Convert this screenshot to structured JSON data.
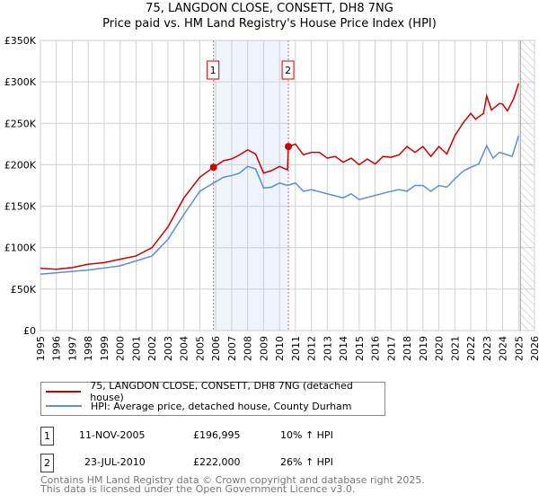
{
  "title": "75, LANGDON CLOSE, CONSETT, DH8 7NG",
  "subtitle": "Price paid vs. HM Land Registry's House Price Index (HPI)",
  "chart_data": {
    "type": "line",
    "xlim": [
      1995,
      2026
    ],
    "ylim": [
      0,
      350000
    ],
    "x_ticks": [
      1995,
      1996,
      1997,
      1998,
      1999,
      2000,
      2001,
      2002,
      2003,
      2004,
      2005,
      2006,
      2007,
      2008,
      2009,
      2010,
      2011,
      2012,
      2013,
      2014,
      2015,
      2016,
      2017,
      2018,
      2019,
      2020,
      2021,
      2022,
      2023,
      2024,
      2025,
      2026
    ],
    "y_ticks": [
      {
        "v": 0,
        "l": "£0"
      },
      {
        "v": 50000,
        "l": "£50K"
      },
      {
        "v": 100000,
        "l": "£100K"
      },
      {
        "v": 150000,
        "l": "£150K"
      },
      {
        "v": 200000,
        "l": "£200K"
      },
      {
        "v": 250000,
        "l": "£250K"
      },
      {
        "v": 300000,
        "l": "£300K"
      },
      {
        "v": 350000,
        "l": "£350K"
      }
    ],
    "grid": true,
    "shaded_range": [
      2005.86,
      2010.56
    ],
    "forecast_hatch_from": 2025.0,
    "series": [
      {
        "name": "75, LANGDON CLOSE, CONSETT, DH8 7NG (detached house)",
        "color": "#cc0000",
        "x": [
          1995,
          1996,
          1997,
          1998,
          1999,
          2000,
          2001,
          2002,
          2003,
          2004,
          2005,
          2005.86,
          2006.5,
          2007,
          2007.5,
          2008,
          2008.5,
          2009,
          2009.5,
          2010,
          2010.5,
          2010.56,
          2011,
          2011.5,
          2012,
          2012.5,
          2013,
          2013.5,
          2014,
          2014.5,
          2015,
          2015.5,
          2016,
          2016.5,
          2017,
          2017.5,
          2018,
          2018.5,
          2019,
          2019.5,
          2020,
          2020.5,
          2021,
          2021.5,
          2022,
          2022.3,
          2022.8,
          2023,
          2023.3,
          2023.8,
          2024,
          2024.3,
          2024.7,
          2025
        ],
        "y": [
          75000,
          74000,
          76000,
          80000,
          82000,
          86000,
          90000,
          100000,
          125000,
          160000,
          185000,
          196995,
          205000,
          207000,
          212000,
          218000,
          213000,
          190000,
          193000,
          198000,
          194000,
          222000,
          225000,
          212000,
          215000,
          215000,
          208000,
          210000,
          203000,
          208000,
          200000,
          207000,
          201000,
          210000,
          209000,
          212000,
          222000,
          215000,
          222000,
          210000,
          222000,
          213000,
          235000,
          250000,
          262000,
          255000,
          262000,
          283000,
          266000,
          274000,
          273000,
          265000,
          280000,
          298000
        ]
      },
      {
        "name": "HPI: Average price, detached house, County Durham",
        "color": "#5b8fd4",
        "x": [
          1995,
          1998,
          2000,
          2002,
          2003,
          2004,
          2005,
          2005.86,
          2006.5,
          2007,
          2007.5,
          2008,
          2008.5,
          2009,
          2009.5,
          2010,
          2010.5,
          2011,
          2011.5,
          2012,
          2013,
          2014,
          2014.5,
          2015,
          2016,
          2017,
          2017.5,
          2018,
          2018.5,
          2019,
          2019.5,
          2020,
          2020.5,
          2021,
          2021.5,
          2022,
          2022.5,
          2023,
          2023.4,
          2023.8,
          2024.3,
          2024.6,
          2025
        ],
        "y": [
          68000,
          73000,
          78000,
          90000,
          110000,
          140000,
          168000,
          178000,
          185000,
          187000,
          190000,
          198000,
          195000,
          172000,
          173000,
          178000,
          175000,
          178000,
          168000,
          170000,
          165000,
          160000,
          165000,
          158000,
          163000,
          168000,
          170000,
          168000,
          175000,
          175000,
          168000,
          175000,
          173000,
          183000,
          192000,
          197000,
          201000,
          223000,
          208000,
          215000,
          212000,
          210000,
          235000
        ]
      }
    ],
    "sales": [
      {
        "label": "1",
        "x": 2005.86,
        "y": 196995
      },
      {
        "label": "2",
        "x": 2010.56,
        "y": 222000
      }
    ]
  },
  "legend": [
    "75, LANGDON CLOSE, CONSETT, DH8 7NG (detached house)",
    "HPI: Average price, detached house, County Durham"
  ],
  "transactions": [
    {
      "num": "1",
      "date": "11-NOV-2005",
      "price": "£196,995",
      "hpi": "10% ↑ HPI"
    },
    {
      "num": "2",
      "date": "23-JUL-2010",
      "price": "£222,000",
      "hpi": "26% ↑ HPI"
    }
  ],
  "footer": [
    "Contains HM Land Registry data © Crown copyright and database right 2025.",
    "This data is licensed under the Open Government Licence v3.0."
  ]
}
